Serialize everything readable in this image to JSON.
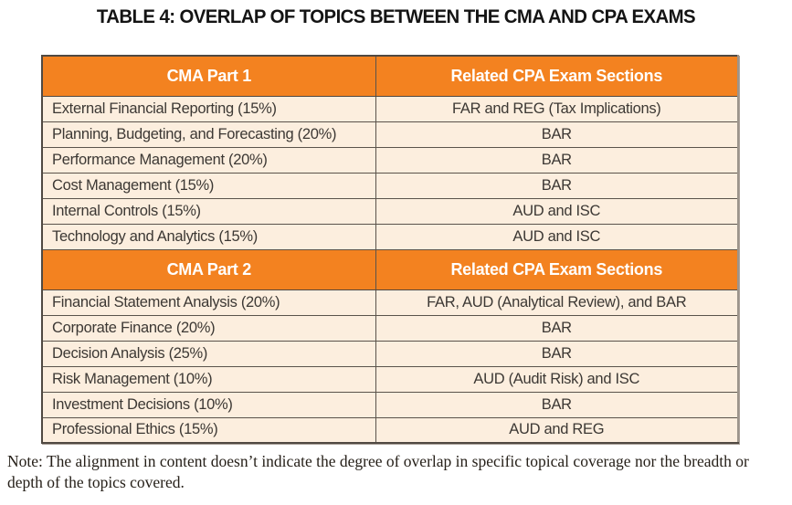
{
  "title": "TABLE 4: OVERLAP OF TOPICS BETWEEN THE CMA AND CPA EXAMS",
  "colors": {
    "header_bg": "#F38220",
    "header_text": "#FFFFFF",
    "row_bg": "#FCEEDE",
    "body_text": "#3C3834",
    "border_dark": "#504942",
    "border_gray": "#9C948B",
    "header_divider": "#A2561A"
  },
  "table": {
    "sections": [
      {
        "header": {
          "left": "CMA Part 1",
          "right": "Related CPA Exam Sections"
        },
        "rows": [
          {
            "topic": "External Financial Reporting (15%)",
            "cpa": "FAR and REG (Tax Implications)"
          },
          {
            "topic": "Planning, Budgeting, and Forecasting (20%)",
            "cpa": "BAR"
          },
          {
            "topic": "Performance Management (20%)",
            "cpa": "BAR"
          },
          {
            "topic": "Cost Management (15%)",
            "cpa": "BAR"
          },
          {
            "topic": "Internal Controls (15%)",
            "cpa": "AUD and ISC"
          },
          {
            "topic": "Technology and Analytics (15%)",
            "cpa": "AUD and ISC"
          }
        ]
      },
      {
        "header": {
          "left": "CMA Part 2",
          "right": "Related CPA Exam Sections"
        },
        "rows": [
          {
            "topic": "Financial Statement Analysis (20%)",
            "cpa": "FAR, AUD (Analytical Review), and BAR"
          },
          {
            "topic": "Corporate Finance (20%)",
            "cpa": "BAR"
          },
          {
            "topic": "Decision Analysis (25%)",
            "cpa": "BAR"
          },
          {
            "topic": "Risk Management (10%)",
            "cpa": "AUD (Audit Risk) and ISC"
          },
          {
            "topic": "Investment Decisions (10%)",
            "cpa": "BAR"
          },
          {
            "topic": "Professional Ethics (15%)",
            "cpa": "AUD and REG"
          }
        ]
      }
    ]
  },
  "note": "Note: The alignment in content doesn’t indicate the degree of overlap in specific topical coverage nor the breadth or depth of the topics covered."
}
